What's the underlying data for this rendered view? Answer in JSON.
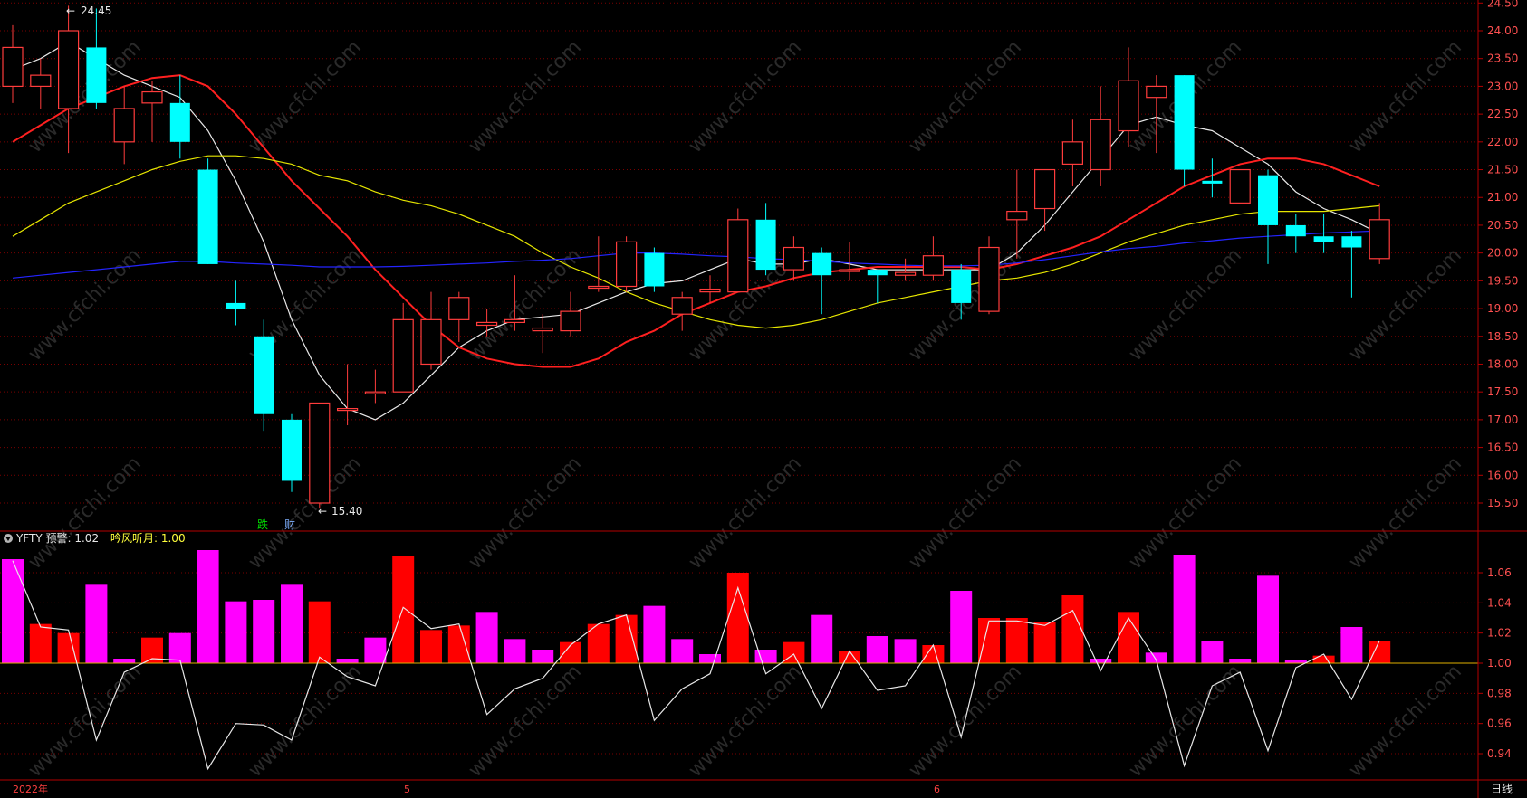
{
  "colors": {
    "up": "#ff3c3c",
    "down": "#00ffff",
    "ma5": "#e8e8e8",
    "ma10": "#ff2020",
    "ma20": "#e6e600",
    "ma60": "#2424ff",
    "bar_magenta": "#ff00ff",
    "bar_red": "#ff0000",
    "axis": "#b40000",
    "grid": "#7a0000",
    "tick_text": "#ff5050"
  },
  "indicator_header": {
    "name": "YFTY 预警: 1.02",
    "value2": "吟风听月: 1.00"
  },
  "annotations": {
    "high": "24.45",
    "low": "15.40",
    "marker_die": "跌",
    "marker_cai": "财"
  },
  "x_axis": {
    "labels": [
      "2022年",
      "5",
      "6"
    ],
    "period": "日线"
  },
  "chart_data": [
    {
      "type": "candlestick",
      "ylim": [
        15.2,
        24.5
      ],
      "y_ticks": [
        "15.50",
        "16.00",
        "16.50",
        "17.00",
        "17.50",
        "18.00",
        "18.50",
        "19.00",
        "19.50",
        "20.00",
        "20.50",
        "21.00",
        "21.50",
        "22.00",
        "22.50",
        "23.00",
        "23.50",
        "24.00",
        "24.50"
      ],
      "candles": [
        {
          "o": 23.0,
          "c": 23.7,
          "h": 24.1,
          "l": 22.7
        },
        {
          "o": 23.0,
          "c": 23.2,
          "h": 23.5,
          "l": 22.6
        },
        {
          "o": 22.6,
          "c": 24.0,
          "h": 24.45,
          "l": 21.8
        },
        {
          "o": 23.7,
          "c": 22.7,
          "h": 24.4,
          "l": 22.6
        },
        {
          "o": 22.0,
          "c": 22.6,
          "h": 23.0,
          "l": 21.6
        },
        {
          "o": 22.7,
          "c": 22.9,
          "h": 23.1,
          "l": 22.0
        },
        {
          "o": 22.7,
          "c": 22.0,
          "h": 23.2,
          "l": 21.7
        },
        {
          "o": 21.5,
          "c": 19.8,
          "h": 21.7,
          "l": 19.8
        },
        {
          "o": 19.1,
          "c": 19.0,
          "h": 19.5,
          "l": 18.7
        },
        {
          "o": 18.5,
          "c": 17.1,
          "h": 18.8,
          "l": 16.8
        },
        {
          "o": 17.0,
          "c": 15.9,
          "h": 17.1,
          "l": 15.7
        },
        {
          "o": 15.5,
          "c": 17.3,
          "h": 17.3,
          "l": 15.4
        },
        {
          "o": 17.2,
          "c": 17.2,
          "h": 18.0,
          "l": 16.9
        },
        {
          "o": 17.5,
          "c": 17.5,
          "h": 17.9,
          "l": 17.3
        },
        {
          "o": 17.5,
          "c": 18.8,
          "h": 19.1,
          "l": 17.5
        },
        {
          "o": 18.0,
          "c": 18.8,
          "h": 19.3,
          "l": 17.9
        },
        {
          "o": 18.8,
          "c": 19.2,
          "h": 19.3,
          "l": 18.4
        },
        {
          "o": 18.7,
          "c": 18.75,
          "h": 19.0,
          "l": 18.5
        },
        {
          "o": 18.75,
          "c": 18.8,
          "h": 19.6,
          "l": 18.6
        },
        {
          "o": 18.6,
          "c": 18.65,
          "h": 18.9,
          "l": 18.2
        },
        {
          "o": 18.6,
          "c": 18.95,
          "h": 19.3,
          "l": 18.5
        },
        {
          "o": 19.4,
          "c": 19.4,
          "h": 20.3,
          "l": 19.3
        },
        {
          "o": 19.4,
          "c": 20.2,
          "h": 20.3,
          "l": 19.3
        },
        {
          "o": 20.0,
          "c": 19.4,
          "h": 20.1,
          "l": 19.3
        },
        {
          "o": 18.9,
          "c": 19.2,
          "h": 19.3,
          "l": 18.6
        },
        {
          "o": 19.3,
          "c": 19.35,
          "h": 19.6,
          "l": 19.1
        },
        {
          "o": 19.3,
          "c": 20.6,
          "h": 20.8,
          "l": 19.3
        },
        {
          "o": 20.6,
          "c": 19.7,
          "h": 20.9,
          "l": 19.6
        },
        {
          "o": 19.7,
          "c": 20.1,
          "h": 20.3,
          "l": 19.5
        },
        {
          "o": 20.0,
          "c": 19.6,
          "h": 20.1,
          "l": 18.9
        },
        {
          "o": 19.7,
          "c": 19.7,
          "h": 20.2,
          "l": 19.5
        },
        {
          "o": 19.7,
          "c": 19.6,
          "h": 19.7,
          "l": 19.1
        },
        {
          "o": 19.6,
          "c": 19.65,
          "h": 19.9,
          "l": 19.5
        },
        {
          "o": 19.6,
          "c": 19.95,
          "h": 20.3,
          "l": 19.5
        },
        {
          "o": 19.7,
          "c": 19.1,
          "h": 19.8,
          "l": 18.8
        },
        {
          "o": 18.95,
          "c": 20.1,
          "h": 20.3,
          "l": 18.9
        },
        {
          "o": 20.6,
          "c": 20.75,
          "h": 21.5,
          "l": 19.9
        },
        {
          "o": 20.8,
          "c": 21.5,
          "h": 21.5,
          "l": 20.4
        },
        {
          "o": 21.6,
          "c": 22.0,
          "h": 22.4,
          "l": 21.2
        },
        {
          "o": 21.5,
          "c": 22.4,
          "h": 23.0,
          "l": 21.2
        },
        {
          "o": 22.2,
          "c": 23.1,
          "h": 23.7,
          "l": 21.9
        },
        {
          "o": 22.8,
          "c": 23.0,
          "h": 23.2,
          "l": 21.8
        },
        {
          "o": 23.2,
          "c": 21.5,
          "h": 23.2,
          "l": 21.2
        },
        {
          "o": 21.3,
          "c": 21.25,
          "h": 21.7,
          "l": 21.0
        },
        {
          "o": 20.9,
          "c": 21.5,
          "h": 21.5,
          "l": 20.9
        },
        {
          "o": 21.4,
          "c": 20.5,
          "h": 21.5,
          "l": 19.8
        },
        {
          "o": 20.5,
          "c": 20.3,
          "h": 20.7,
          "l": 20.0
        },
        {
          "o": 20.3,
          "c": 20.2,
          "h": 20.7,
          "l": 20.0
        },
        {
          "o": 20.3,
          "c": 20.1,
          "h": 20.4,
          "l": 19.2
        },
        {
          "o": 19.9,
          "c": 20.6,
          "h": 20.9,
          "l": 19.8
        }
      ],
      "ma_lines": [
        {
          "key": "ma5",
          "values": [
            23.3,
            23.5,
            23.8,
            23.5,
            23.2,
            23.0,
            22.8,
            22.2,
            21.3,
            20.2,
            18.8,
            17.8,
            17.2,
            17.0,
            17.3,
            17.8,
            18.3,
            18.6,
            18.8,
            18.85,
            18.9,
            19.1,
            19.3,
            19.45,
            19.5,
            19.7,
            19.9,
            19.8,
            19.8,
            19.9,
            19.8,
            19.7,
            19.7,
            19.7,
            19.7,
            19.7,
            20.0,
            20.5,
            21.1,
            21.7,
            22.3,
            22.45,
            22.3,
            22.2,
            21.9,
            21.6,
            21.1,
            20.8,
            20.6,
            20.35
          ]
        },
        {
          "key": "ma10",
          "values": [
            22.0,
            22.3,
            22.6,
            22.8,
            23.0,
            23.15,
            23.2,
            23.0,
            22.5,
            21.9,
            21.3,
            20.8,
            20.3,
            19.7,
            19.2,
            18.7,
            18.3,
            18.1,
            18.0,
            17.95,
            17.95,
            18.1,
            18.4,
            18.6,
            18.9,
            19.1,
            19.3,
            19.4,
            19.55,
            19.65,
            19.7,
            19.75,
            19.75,
            19.75,
            19.75,
            19.7,
            19.8,
            19.95,
            20.1,
            20.3,
            20.6,
            20.9,
            21.2,
            21.4,
            21.6,
            21.7,
            21.7,
            21.6,
            21.4,
            21.2
          ]
        },
        {
          "key": "ma20",
          "values": [
            20.3,
            20.6,
            20.9,
            21.1,
            21.3,
            21.5,
            21.65,
            21.75,
            21.75,
            21.7,
            21.6,
            21.4,
            21.3,
            21.1,
            20.95,
            20.85,
            20.7,
            20.5,
            20.3,
            20.0,
            19.75,
            19.55,
            19.3,
            19.1,
            18.95,
            18.8,
            18.7,
            18.65,
            18.7,
            18.8,
            18.95,
            19.1,
            19.2,
            19.3,
            19.4,
            19.5,
            19.55,
            19.65,
            19.8,
            20.0,
            20.2,
            20.35,
            20.5,
            20.6,
            20.7,
            20.75,
            20.75,
            20.75,
            20.8,
            20.85
          ]
        },
        {
          "key": "ma60",
          "values": [
            19.55,
            19.6,
            19.65,
            19.7,
            19.75,
            19.8,
            19.85,
            19.85,
            19.82,
            19.8,
            19.78,
            19.75,
            19.75,
            19.75,
            19.76,
            19.78,
            19.8,
            19.82,
            19.85,
            19.87,
            19.9,
            19.95,
            20.0,
            20.0,
            19.98,
            19.95,
            19.93,
            19.9,
            19.88,
            19.85,
            19.82,
            19.8,
            19.78,
            19.77,
            19.77,
            19.78,
            19.82,
            19.88,
            19.95,
            20.02,
            20.08,
            20.12,
            20.18,
            20.22,
            20.27,
            20.3,
            20.33,
            20.36,
            20.38,
            20.4
          ]
        }
      ]
    },
    {
      "type": "bar",
      "ylim": [
        0.925,
        1.087
      ],
      "y_ticks": [
        "0.94",
        "0.96",
        "0.98",
        "1.00",
        "1.02",
        "1.04",
        "1.06"
      ],
      "baseline": 1.0,
      "bars": [
        {
          "v": 1.069,
          "c": "m"
        },
        {
          "v": 1.026,
          "c": "r"
        },
        {
          "v": 1.02,
          "c": "r"
        },
        {
          "v": 1.052,
          "c": "m"
        },
        {
          "v": 1.003,
          "c": "m"
        },
        {
          "v": 1.017,
          "c": "r"
        },
        {
          "v": 1.02,
          "c": "m"
        },
        {
          "v": 1.075,
          "c": "m"
        },
        {
          "v": 1.041,
          "c": "m"
        },
        {
          "v": 1.042,
          "c": "m"
        },
        {
          "v": 1.052,
          "c": "m"
        },
        {
          "v": 1.041,
          "c": "r"
        },
        {
          "v": 1.003,
          "c": "m"
        },
        {
          "v": 1.017,
          "c": "m"
        },
        {
          "v": 1.071,
          "c": "r"
        },
        {
          "v": 1.022,
          "c": "r"
        },
        {
          "v": 1.025,
          "c": "r"
        },
        {
          "v": 1.034,
          "c": "m"
        },
        {
          "v": 1.016,
          "c": "m"
        },
        {
          "v": 1.009,
          "c": "m"
        },
        {
          "v": 1.014,
          "c": "r"
        },
        {
          "v": 1.026,
          "c": "r"
        },
        {
          "v": 1.032,
          "c": "r"
        },
        {
          "v": 1.038,
          "c": "m"
        },
        {
          "v": 1.016,
          "c": "m"
        },
        {
          "v": 1.006,
          "c": "m"
        },
        {
          "v": 1.06,
          "c": "r"
        },
        {
          "v": 1.009,
          "c": "m"
        },
        {
          "v": 1.014,
          "c": "r"
        },
        {
          "v": 1.032,
          "c": "m"
        },
        {
          "v": 1.008,
          "c": "r"
        },
        {
          "v": 1.018,
          "c": "m"
        },
        {
          "v": 1.016,
          "c": "m"
        },
        {
          "v": 1.012,
          "c": "r"
        },
        {
          "v": 1.048,
          "c": "m"
        },
        {
          "v": 1.03,
          "c": "r"
        },
        {
          "v": 1.03,
          "c": "r"
        },
        {
          "v": 1.027,
          "c": "r"
        },
        {
          "v": 1.045,
          "c": "r"
        },
        {
          "v": 1.003,
          "c": "m"
        },
        {
          "v": 1.034,
          "c": "r"
        },
        {
          "v": 1.007,
          "c": "m"
        },
        {
          "v": 1.072,
          "c": "m"
        },
        {
          "v": 1.015,
          "c": "m"
        },
        {
          "v": 1.003,
          "c": "m"
        },
        {
          "v": 1.058,
          "c": "m"
        },
        {
          "v": 1.002,
          "c": "m"
        },
        {
          "v": 1.005,
          "c": "r"
        },
        {
          "v": 1.024,
          "c": "m"
        },
        {
          "v": 1.015,
          "c": "r"
        }
      ],
      "line": [
        1.068,
        1.024,
        1.022,
        0.949,
        0.994,
        1.003,
        1.002,
        0.93,
        0.96,
        0.959,
        0.949,
        1.004,
        0.991,
        0.985,
        1.037,
        1.023,
        1.026,
        0.966,
        0.983,
        0.99,
        1.012,
        1.026,
        1.032,
        0.962,
        0.983,
        0.993,
        1.05,
        0.993,
        1.006,
        0.97,
        1.008,
        0.982,
        0.985,
        1.012,
        0.951,
        1.028,
        1.028,
        1.025,
        1.035,
        0.995,
        1.03,
        1.002,
        0.932,
        0.985,
        0.994,
        0.942,
        0.997,
        1.006,
        0.976,
        1.015
      ]
    }
  ]
}
